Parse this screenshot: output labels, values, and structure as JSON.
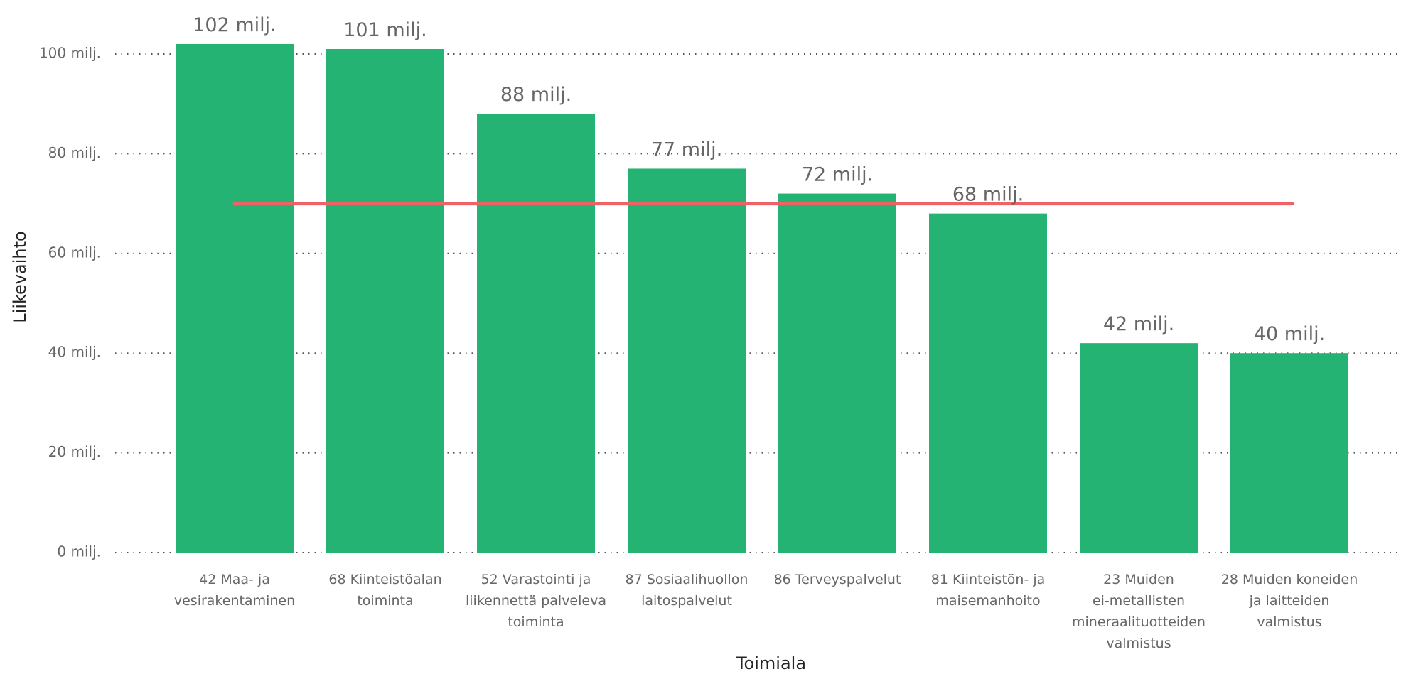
{
  "chart_data": {
    "type": "bar",
    "categories": [
      [
        "42 Maa- ja",
        "vesirakentaminen"
      ],
      [
        "68 Kiinteistöalan",
        "toiminta"
      ],
      [
        "52 Varastointi ja",
        "liikennettä palveleva",
        "toiminta"
      ],
      [
        "87 Sosiaalihuollon",
        "laitospalvelut"
      ],
      [
        "86 Terveyspalvelut"
      ],
      [
        "81 Kiinteistön- ja",
        "maisemanhoito"
      ],
      [
        "23 Muiden",
        "ei-metallisten",
        "mineraalituotteiden",
        "valmistus"
      ],
      [
        "28 Muiden koneiden",
        "ja laitteiden",
        "valmistus"
      ]
    ],
    "values": [
      102,
      101,
      88,
      77,
      72,
      68,
      42,
      40
    ],
    "data_labels": [
      "102 milj.",
      "101 milj.",
      "88 milj.",
      "77 milj.",
      "72 milj.",
      "68 milj.",
      "42 milj.",
      "40 milj."
    ],
    "yticks": [
      0,
      20,
      40,
      60,
      80,
      100
    ],
    "ytick_labels": [
      "0 milj.",
      "20 milj.",
      "40 milj.",
      "60 milj.",
      "80 milj.",
      "100 milj."
    ],
    "ylim": [
      0,
      102
    ],
    "reference_line": 70,
    "xlabel": "Toimiala",
    "ylabel": "Liikevaihto",
    "title": "",
    "grid": true,
    "legend": "none",
    "bar_color": "#25B373",
    "reference_line_color": "#EF6266"
  }
}
